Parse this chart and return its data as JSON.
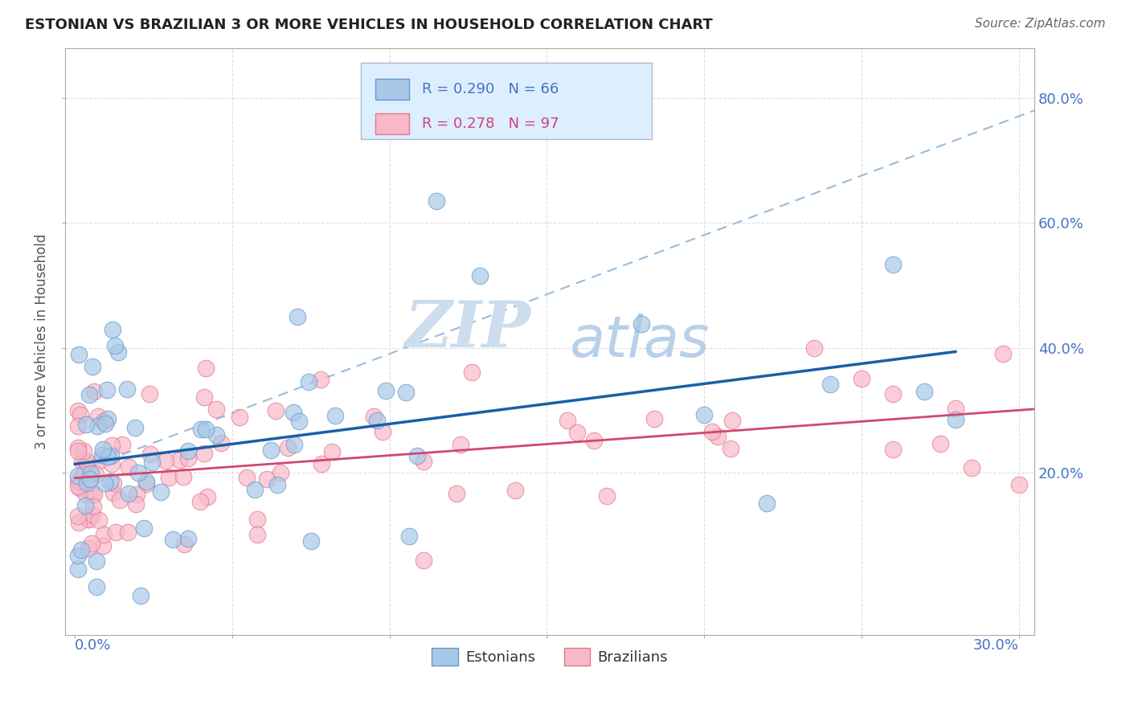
{
  "title": "ESTONIAN VS BRAZILIAN 3 OR MORE VEHICLES IN HOUSEHOLD CORRELATION CHART",
  "source": "Source: ZipAtlas.com",
  "ylabel": "3 or more Vehicles in Household",
  "right_ytick_vals": [
    0.2,
    0.4,
    0.6,
    0.8
  ],
  "right_ytick_labels": [
    "20.0%",
    "40.0%",
    "60.0%",
    "80.0%"
  ],
  "xmin": -0.003,
  "xmax": 0.305,
  "ymin": -0.06,
  "ymax": 0.88,
  "estonian_R": 0.29,
  "estonian_N": 66,
  "brazilian_R": 0.278,
  "brazilian_N": 97,
  "estonian_dot_color": "#a8c8e8",
  "estonian_edge_color": "#6699cc",
  "estonian_line_color": "#1a5fa8",
  "estonian_dash_color": "#99bbdd",
  "brazilian_dot_color": "#f8b8c8",
  "brazilian_edge_color": "#e07890",
  "brazilian_line_color": "#d04870",
  "watermark_zip": "ZIP",
  "watermark_atlas": "atlas",
  "watermark_color": "#ccdded",
  "legend_box_color": "#ddeeff",
  "legend_border_color": "#aabbcc",
  "legend_text_color_blue": "#4472c4",
  "legend_text_color_pink": "#cc4477",
  "background_color": "#ffffff",
  "grid_color": "#dddddd",
  "spine_color": "#aaaaaa",
  "xlabel_color": "#4472c4",
  "ylabel_color": "#555555"
}
